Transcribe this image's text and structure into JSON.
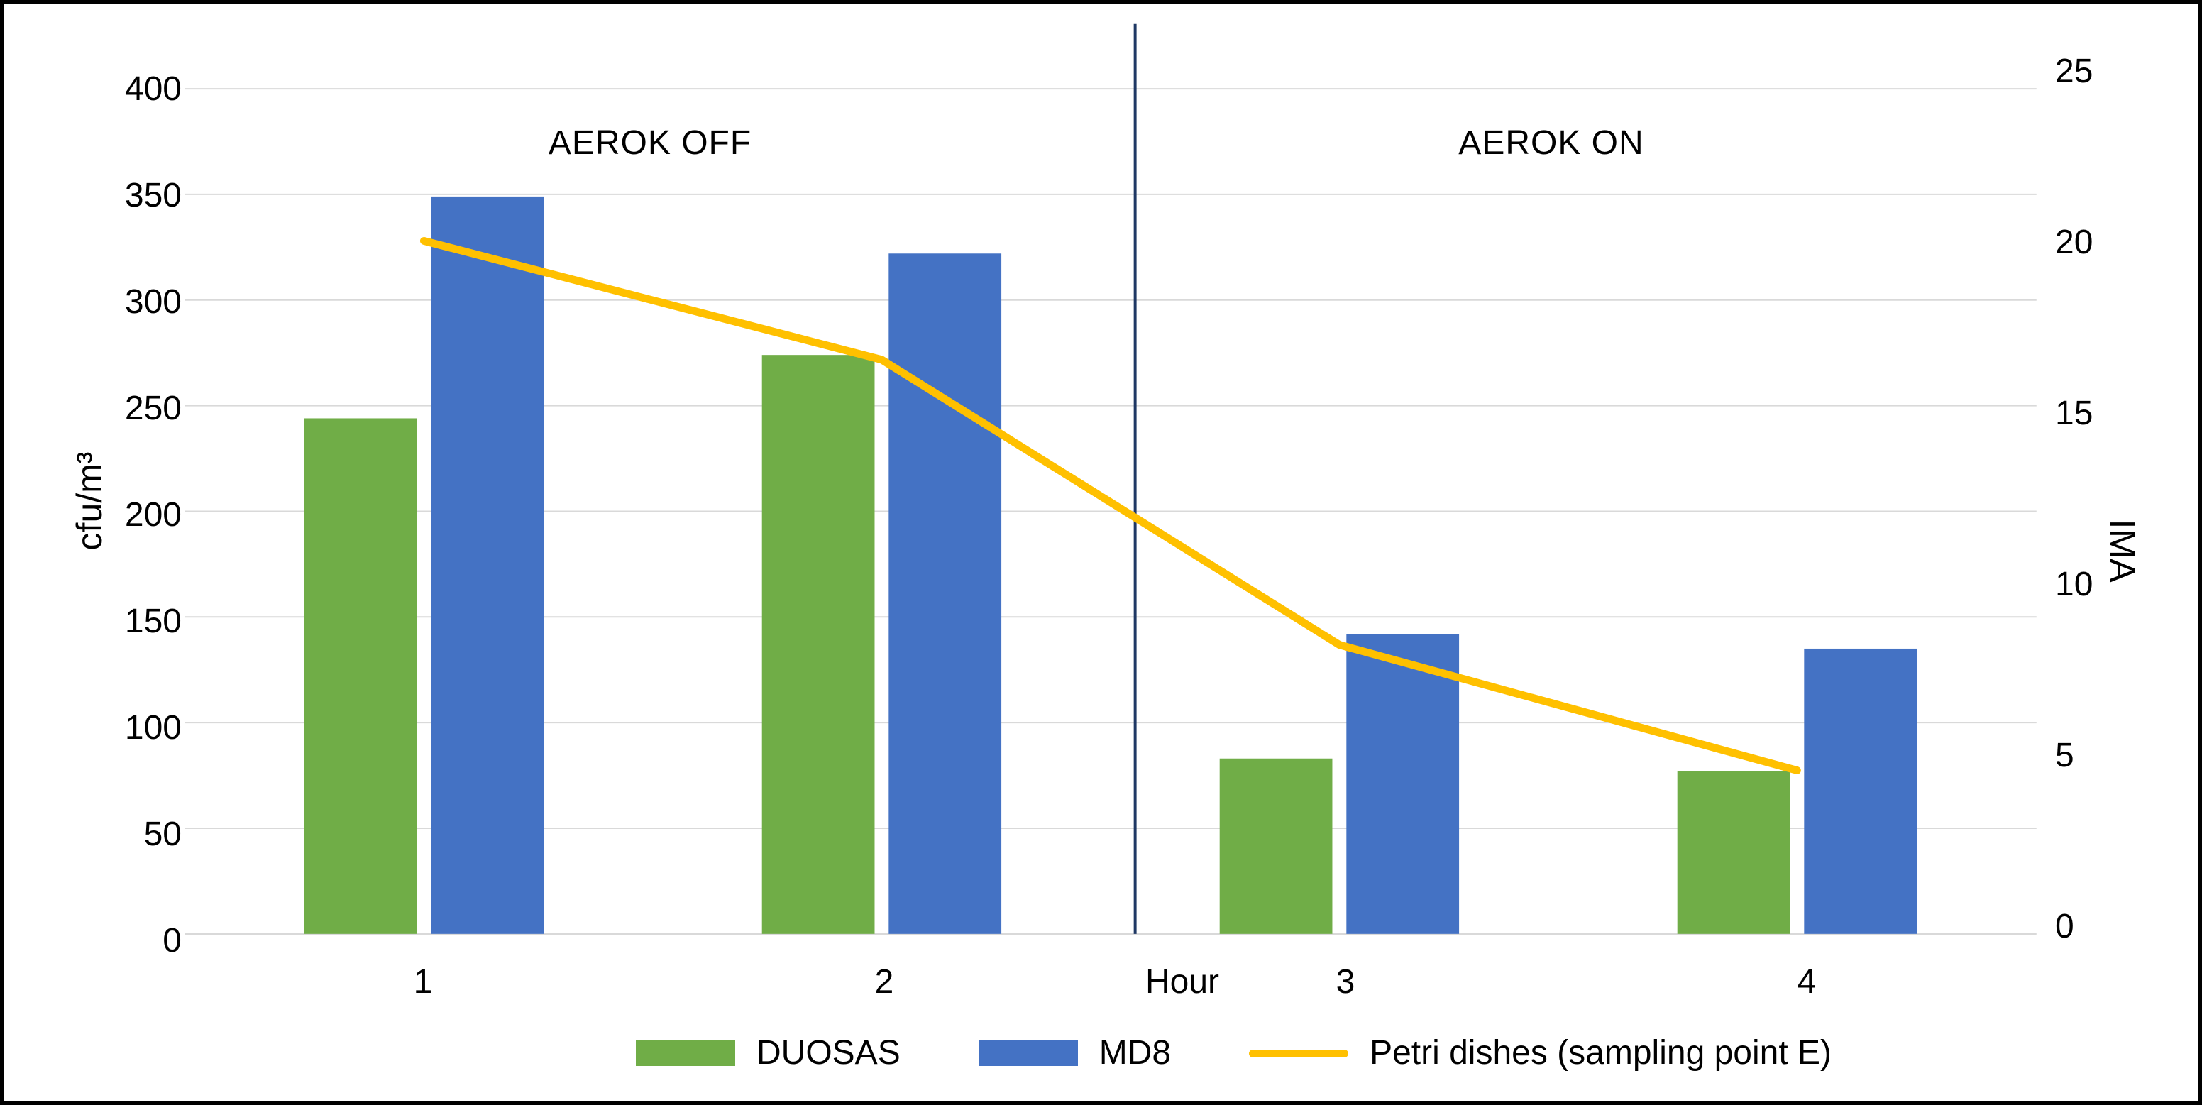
{
  "chart_data": {
    "type": "bar",
    "subtype": "combo-bar-line-dual-axis",
    "categories": [
      "1",
      "2",
      "3",
      "4"
    ],
    "series": [
      {
        "name": "DUOSAS",
        "type": "bar",
        "axis": "left",
        "color": "#70AD47",
        "values": [
          244,
          274,
          83,
          77
        ]
      },
      {
        "name": "MD8",
        "type": "bar",
        "axis": "left",
        "color": "#4472C4",
        "values": [
          349,
          322,
          142,
          135
        ]
      },
      {
        "name": "Petri dishes (sampling point E)",
        "type": "line",
        "axis": "right",
        "color": "#FFC000",
        "values": [
          20,
          16.5,
          8.1,
          4.4
        ]
      }
    ],
    "xlabel": "Hour",
    "left_axis": {
      "label": "cfu/m³",
      "min": 0,
      "max": 400,
      "ticks": [
        0,
        50,
        100,
        150,
        200,
        250,
        300,
        350,
        400
      ]
    },
    "right_axis": {
      "label": "IMA",
      "min": 0,
      "max": 25,
      "ticks": [
        0,
        5,
        10,
        15,
        20,
        25
      ]
    },
    "annotations": [
      {
        "text": "AEROK OFF",
        "region": "left-of-divider"
      },
      {
        "text": "AEROK ON",
        "region": "right-of-divider"
      }
    ],
    "divider": {
      "position": "between hour 2 and hour 3",
      "color": "#1F3864"
    },
    "grid": true,
    "grid_color": "#D9D9D9",
    "legend_position": "bottom"
  }
}
